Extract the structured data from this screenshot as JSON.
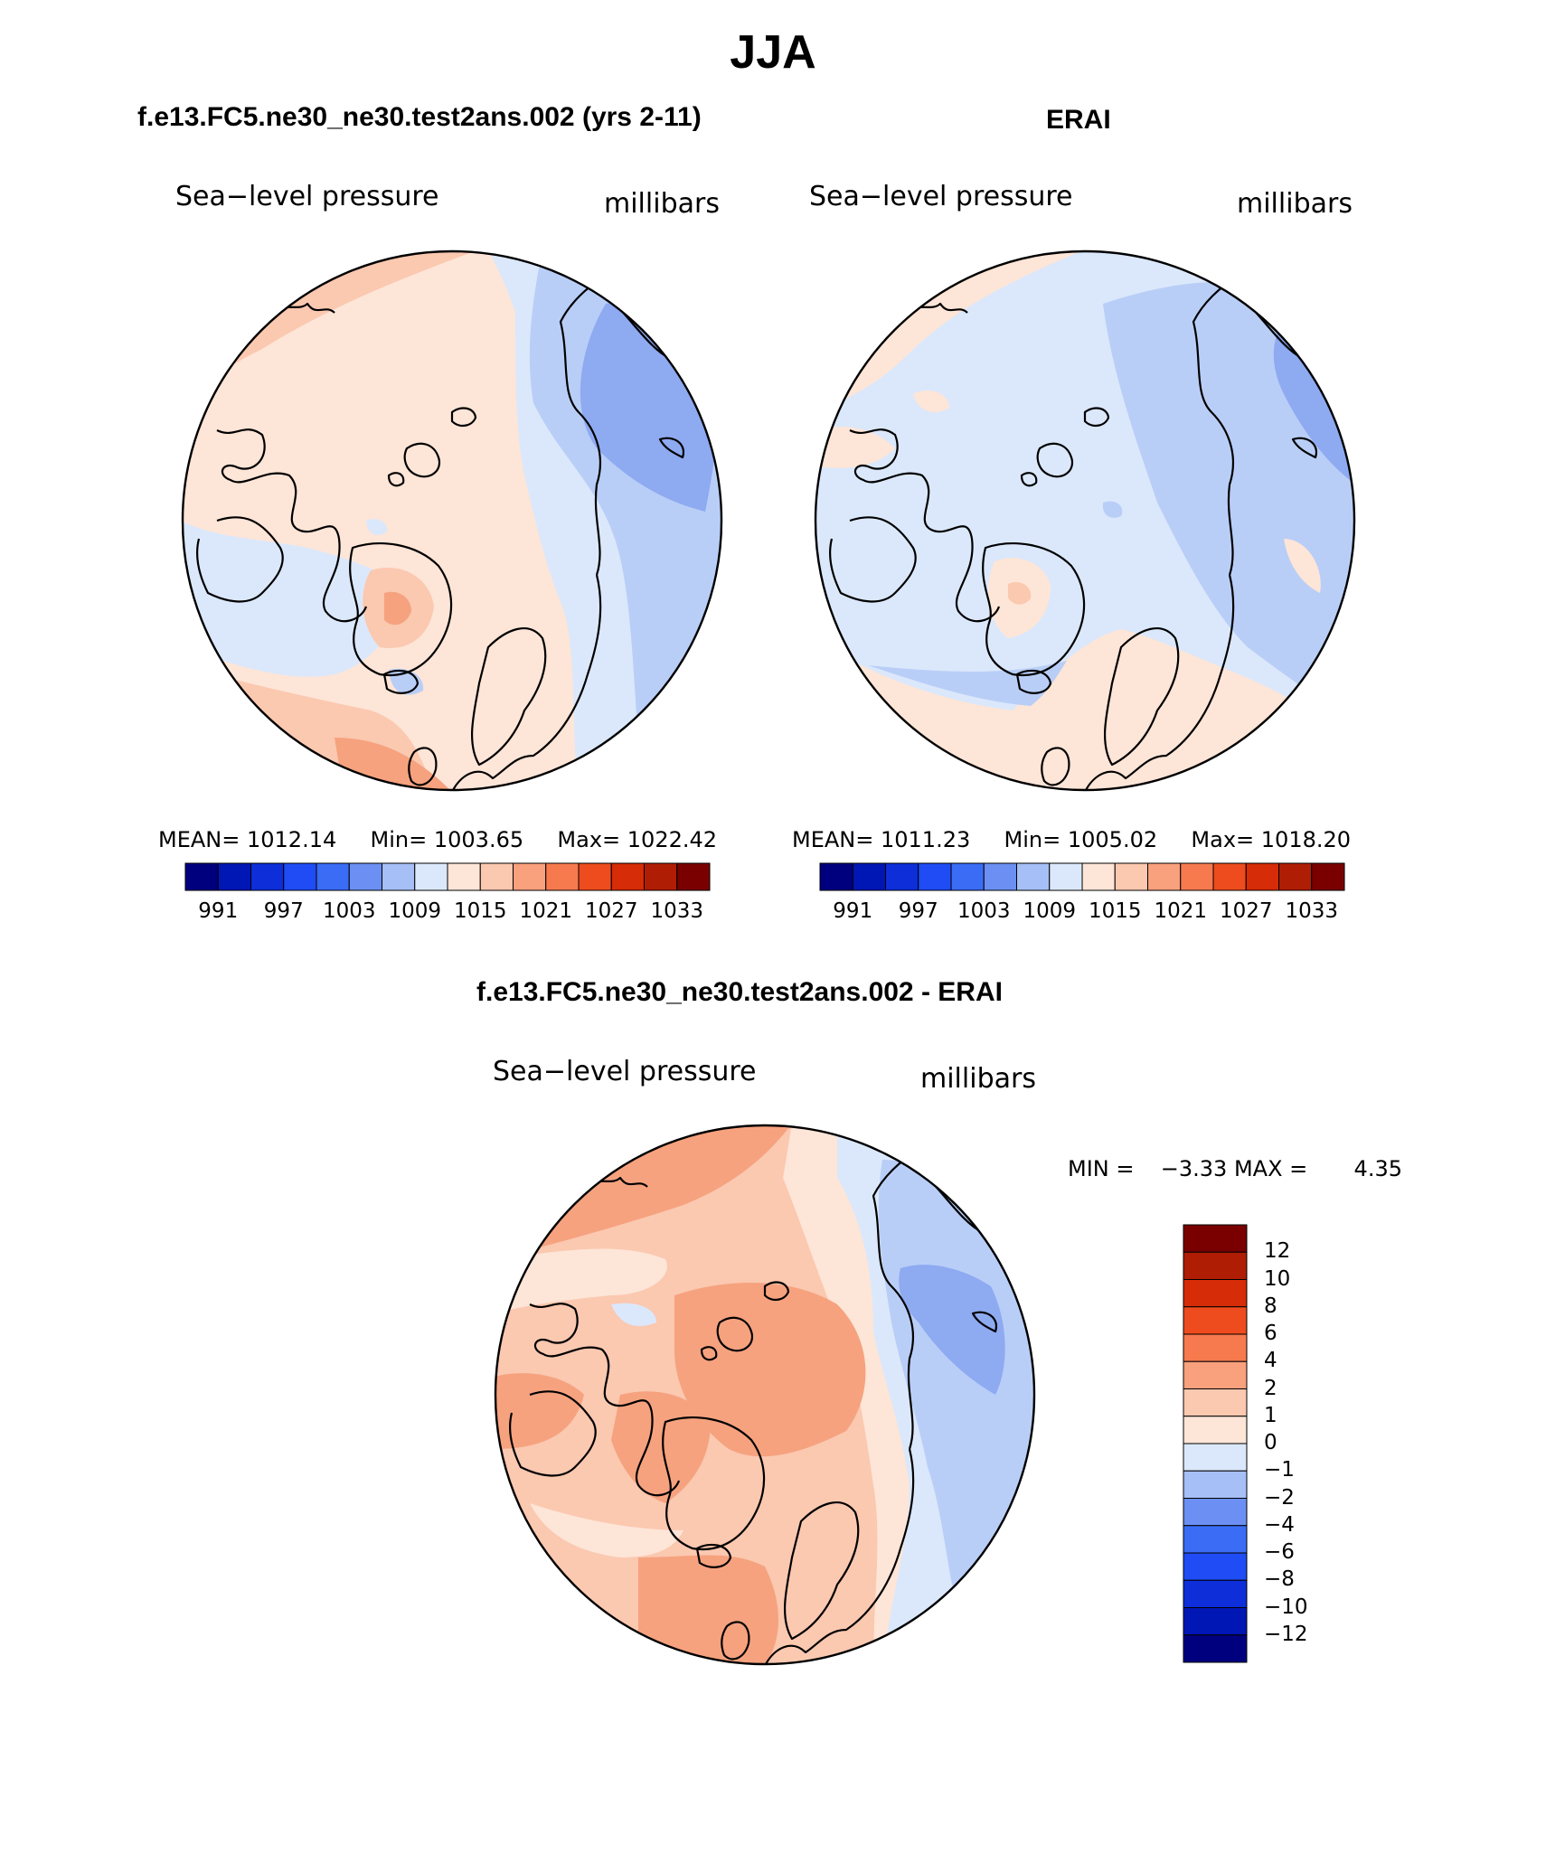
{
  "page": {
    "title": "JJA"
  },
  "colors": {
    "coastline": "#000000",
    "palette": [
      "#00007f",
      "#0016b5",
      "#0d2ed9",
      "#1f4cf5",
      "#3a6cf6",
      "#6b8ff2",
      "#a6bff6",
      "#dbe8fb",
      "#fde5d7",
      "#fbc8b0",
      "#f9a07d",
      "#f77a4f",
      "#ee4c1e",
      "#d62c07",
      "#b01d05",
      "#7a0000"
    ],
    "field": {
      "very_light_blue": "#dbe8fb",
      "light_blue": "#b9cef7",
      "mid_blue": "#8eaaf1",
      "light_red": "#fde5d7",
      "peach": "#fbc8b0",
      "salmon": "#f6a27f",
      "orange_red": "#f07d55"
    }
  },
  "chart_data": [
    {
      "type": "heatmap",
      "projection": "north-polar-stereographic",
      "title": "f.e13.FC5.ne30_ne30.test2ans.002 (yrs 2-11)",
      "variable": "Sea−level pressure",
      "units": "millibars",
      "stats": {
        "mean_label": "MEAN=",
        "mean": "1012.14",
        "min_label": "Min=",
        "min": "1003.65",
        "max_label": "Max=",
        "max": "1022.42"
      },
      "colorbar": {
        "orientation": "horizontal",
        "tick_labels": [
          "991",
          "997",
          "1003",
          "1009",
          "1015",
          "1021",
          "1027",
          "1033"
        ]
      }
    },
    {
      "type": "heatmap",
      "projection": "north-polar-stereographic",
      "title": "ERAI",
      "variable": "Sea−level pressure",
      "units": "millibars",
      "stats": {
        "mean_label": "MEAN=",
        "mean": "1011.23",
        "min_label": "Min=",
        "min": "1005.02",
        "max_label": "Max=",
        "max": "1018.20"
      },
      "colorbar": {
        "orientation": "horizontal",
        "tick_labels": [
          "991",
          "997",
          "1003",
          "1009",
          "1015",
          "1021",
          "1027",
          "1033"
        ]
      }
    },
    {
      "type": "heatmap",
      "projection": "north-polar-stereographic",
      "title": "f.e13.FC5.ne30_ne30.test2ans.002 - ERAI",
      "variable": "Sea−level pressure",
      "units": "millibars",
      "minmax": {
        "min_label": "MIN =",
        "min": "−3.33",
        "max_label": "MAX =",
        "max": "4.35"
      },
      "colorbar": {
        "orientation": "vertical",
        "tick_labels": [
          "12",
          "10",
          "8",
          "6",
          "4",
          "2",
          "1",
          "0",
          "−1",
          "−2",
          "−4",
          "−6",
          "−8",
          "−10",
          "−12"
        ]
      }
    }
  ]
}
